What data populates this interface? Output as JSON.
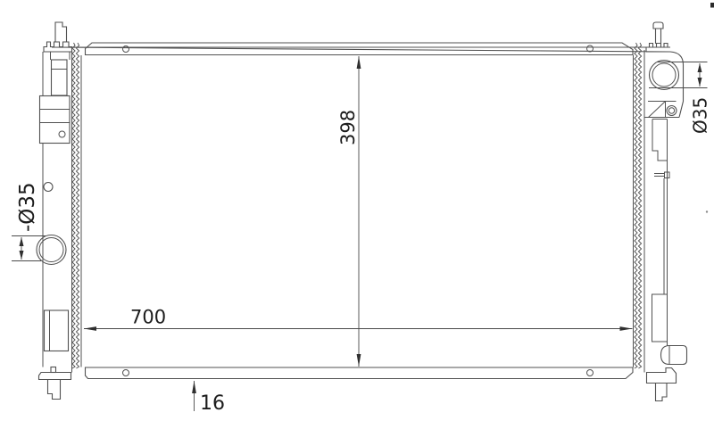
{
  "drawing": {
    "type": "technical-drawing",
    "dimensions": {
      "core_height": {
        "label": "398"
      },
      "core_width": {
        "label": "700"
      },
      "core_thickness": {
        "label": "16"
      },
      "left_pipe_diameter": {
        "label": "-Ø35"
      },
      "right_pipe_diameter": {
        "label": "Ø35"
      }
    },
    "colors": {
      "bg": "#ffffff",
      "line": "#515151",
      "dim": "#4a4a4a",
      "arrow": "#2f2f2f",
      "text": "#1c1c1c"
    }
  }
}
